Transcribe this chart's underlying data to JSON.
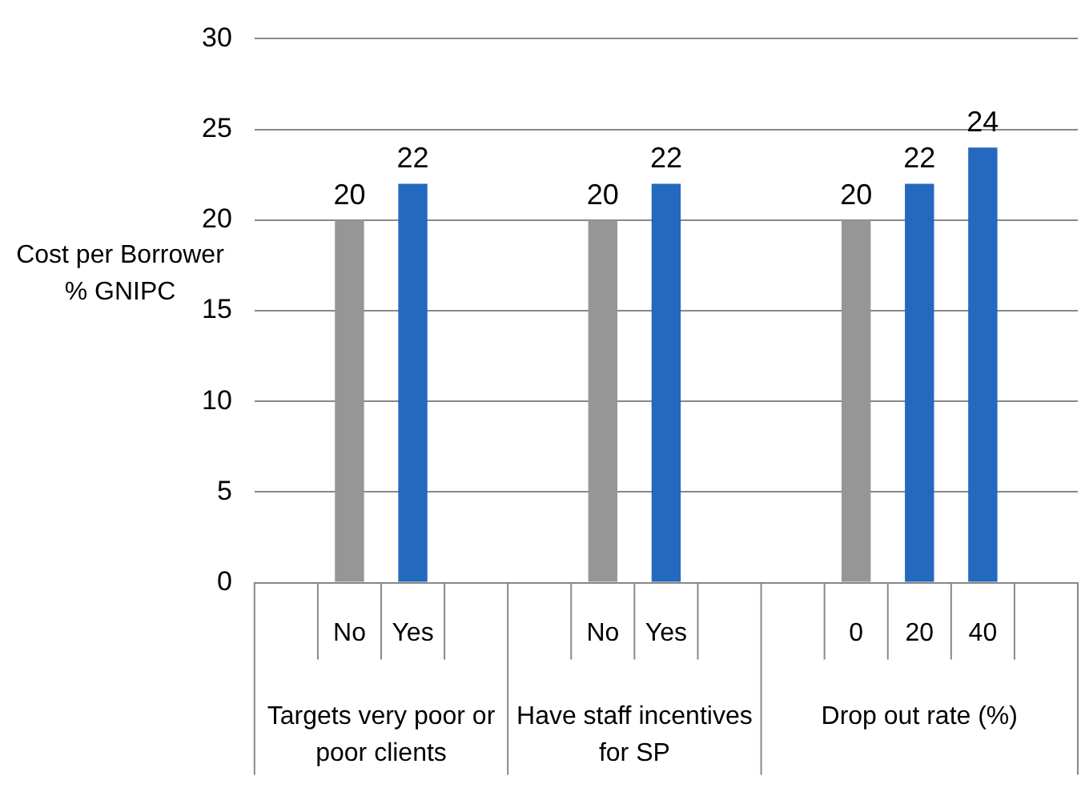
{
  "chart_data": {
    "type": "bar",
    "ylabel": "Cost per Borrower % GNIPC",
    "categories": [
      null,
      "No",
      "Yes",
      null,
      null,
      "No",
      "Yes",
      null,
      null,
      "0",
      "20",
      "40",
      null
    ],
    "series": [
      {
        "values": [
          null,
          20,
          22,
          null,
          null,
          20,
          22,
          null,
          null,
          20,
          22,
          24,
          null
        ],
        "colors": [
          "#969696",
          "#969696",
          "#2369be",
          "#969696",
          "#969696",
          "#969696",
          "#2369be",
          "#969696",
          "#969696",
          "#969696",
          "#2369be",
          "#2369be",
          "#969696"
        ]
      }
    ],
    "ylim": [
      0,
      30
    ],
    "yticks": [
      0,
      5,
      10,
      15,
      20,
      25,
      30
    ],
    "grid": "y",
    "legend": false,
    "data_labels": true,
    "annotations": [
      "Targets very poor or poor clients",
      "Have staff incentives for SP",
      "Drop out rate (%)"
    ]
  }
}
